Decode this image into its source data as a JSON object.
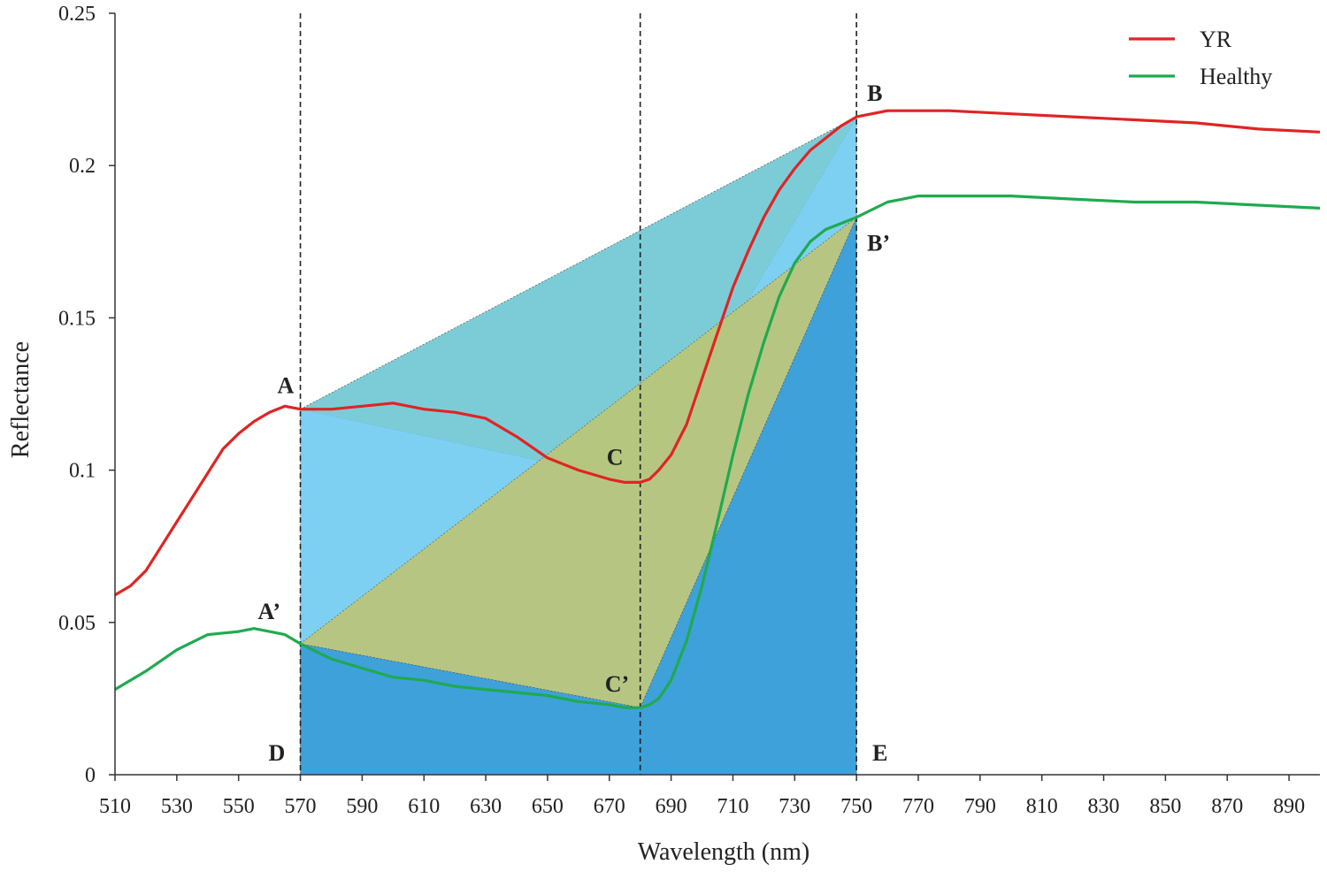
{
  "chart_data": {
    "type": "line",
    "xlabel": "Wavelength (nm)",
    "ylabel": "Reflectance",
    "xlim": [
      510,
      900
    ],
    "ylim": [
      0,
      0.25
    ],
    "x_ticks": [
      510,
      530,
      550,
      570,
      590,
      610,
      630,
      650,
      670,
      690,
      710,
      730,
      750,
      770,
      790,
      810,
      830,
      850,
      870,
      890
    ],
    "y_ticks": [
      {
        "value": 0,
        "label": "0"
      },
      {
        "value": 0.05,
        "label": "0.05"
      },
      {
        "value": 0.1,
        "label": "0.1"
      },
      {
        "value": 0.15,
        "label": "0.15"
      },
      {
        "value": 0.2,
        "label": "0.2"
      },
      {
        "value": 0.25,
        "label": "0.25"
      }
    ],
    "grid": false,
    "legend_position": "top-right",
    "series": [
      {
        "name": "YR",
        "color": "#e02424",
        "x": [
          510,
          515,
          520,
          525,
          530,
          535,
          540,
          545,
          550,
          555,
          560,
          565,
          570,
          580,
          590,
          600,
          610,
          620,
          630,
          640,
          650,
          660,
          670,
          675,
          680,
          683,
          686,
          690,
          695,
          700,
          705,
          710,
          715,
          720,
          725,
          730,
          735,
          740,
          745,
          750,
          760,
          780,
          800,
          820,
          840,
          860,
          880,
          900
        ],
        "y": [
          0.059,
          0.062,
          0.067,
          0.075,
          0.083,
          0.091,
          0.099,
          0.107,
          0.112,
          0.116,
          0.119,
          0.121,
          0.12,
          0.12,
          0.121,
          0.122,
          0.12,
          0.119,
          0.117,
          0.111,
          0.104,
          0.1,
          0.097,
          0.096,
          0.096,
          0.097,
          0.1,
          0.105,
          0.115,
          0.13,
          0.145,
          0.16,
          0.172,
          0.183,
          0.192,
          0.199,
          0.205,
          0.209,
          0.213,
          0.216,
          0.218,
          0.218,
          0.217,
          0.216,
          0.215,
          0.214,
          0.212,
          0.211
        ]
      },
      {
        "name": "Healthy",
        "color": "#1faa4f",
        "x": [
          510,
          520,
          530,
          540,
          550,
          555,
          560,
          565,
          570,
          580,
          590,
          600,
          610,
          620,
          630,
          640,
          650,
          660,
          670,
          675,
          680,
          683,
          686,
          690,
          695,
          700,
          705,
          710,
          715,
          720,
          725,
          730,
          735,
          740,
          745,
          750,
          760,
          770,
          780,
          800,
          820,
          840,
          860,
          880,
          900
        ],
        "y": [
          0.028,
          0.034,
          0.041,
          0.046,
          0.047,
          0.048,
          0.047,
          0.046,
          0.043,
          0.038,
          0.035,
          0.032,
          0.031,
          0.029,
          0.028,
          0.027,
          0.026,
          0.024,
          0.023,
          0.022,
          0.022,
          0.023,
          0.025,
          0.031,
          0.044,
          0.062,
          0.083,
          0.105,
          0.125,
          0.142,
          0.157,
          0.168,
          0.175,
          0.179,
          0.181,
          0.183,
          0.188,
          0.19,
          0.19,
          0.19,
          0.189,
          0.188,
          0.188,
          0.187,
          0.186
        ]
      }
    ],
    "vertical_lines": [
      570,
      680,
      750
    ],
    "points": [
      {
        "label": "A",
        "x": 570,
        "y": 0.12
      },
      {
        "label": "B",
        "x": 750,
        "y": 0.216
      },
      {
        "label": "C",
        "x": 680,
        "y": 0.096
      },
      {
        "label": "A’",
        "x": 570,
        "y": 0.043
      },
      {
        "label": "B’",
        "x": 750,
        "y": 0.183
      },
      {
        "label": "C’",
        "x": 680,
        "y": 0.022
      },
      {
        "label": "D",
        "x": 570,
        "y": 0
      },
      {
        "label": "E",
        "x": 750,
        "y": 0
      }
    ],
    "regions": [
      {
        "name": "area-A-B-C",
        "color": "#f5e03c",
        "vertices": [
          "A",
          "B",
          "C"
        ]
      },
      {
        "name": "area-A-B-E-D",
        "color": "#66c8ee",
        "vertices": [
          "A",
          "B",
          "E",
          "D"
        ]
      },
      {
        "name": "area-A'-B'-C'",
        "color": "#bfc46e",
        "vertices": [
          "A’",
          "B’",
          "C’"
        ]
      },
      {
        "name": "area-A'-C'-B'-E-D",
        "color": "#3399d6",
        "vertices": [
          "A’",
          "C’",
          "B’",
          "E",
          "D"
        ]
      }
    ]
  }
}
